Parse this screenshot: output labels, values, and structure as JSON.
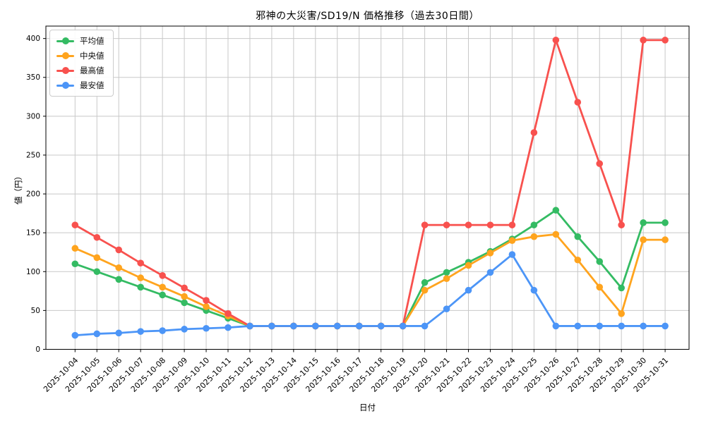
{
  "chart_data": {
    "type": "line",
    "title": "邪神の大災害/SD19/N 価格推移（過去30日間）",
    "xlabel": "日付",
    "ylabel": "値（円）",
    "ylim": [
      0,
      400
    ],
    "yticks": [
      0,
      50,
      100,
      150,
      200,
      250,
      300,
      350,
      400
    ],
    "grid": true,
    "legend_position": "upper left",
    "x": [
      "2025-10-04",
      "2025-10-05",
      "2025-10-06",
      "2025-10-07",
      "2025-10-08",
      "2025-10-09",
      "2025-10-10",
      "2025-10-11",
      "2025-10-12",
      "2025-10-13",
      "2025-10-14",
      "2025-10-15",
      "2025-10-16",
      "2025-10-17",
      "2025-10-18",
      "2025-10-19",
      "2025-10-20",
      "2025-10-21",
      "2025-10-22",
      "2025-10-23",
      "2025-10-24",
      "2025-10-25",
      "2025-10-26",
      "2025-10-27",
      "2025-10-28",
      "2025-10-29",
      "2025-10-30",
      "2025-10-31"
    ],
    "series": [
      {
        "name": "平均値",
        "color": "#34bb63",
        "values": [
          110,
          100,
          90,
          80,
          70,
          60,
          50,
          40,
          30,
          30,
          30,
          30,
          30,
          30,
          30,
          30,
          86,
          99,
          112,
          126,
          142,
          160,
          179,
          145,
          113,
          79,
          163,
          163
        ]
      },
      {
        "name": "中央値",
        "color": "#ffa41e",
        "values": [
          130,
          118,
          105,
          92,
          80,
          68,
          55,
          43,
          30,
          30,
          30,
          30,
          30,
          30,
          30,
          30,
          76,
          91,
          108,
          124,
          140,
          145,
          148,
          115,
          80,
          46,
          141,
          141
        ]
      },
      {
        "name": "最高値",
        "color": "#f8514e",
        "values": [
          160,
          144,
          128,
          111,
          95,
          79,
          63,
          46,
          30,
          30,
          30,
          30,
          30,
          30,
          30,
          30,
          160,
          160,
          160,
          160,
          160,
          279,
          398,
          318,
          239,
          160,
          398,
          398
        ]
      },
      {
        "name": "最安値",
        "color": "#4c95f7",
        "values": [
          18,
          20,
          21,
          23,
          24,
          26,
          27,
          28,
          30,
          30,
          30,
          30,
          30,
          30,
          30,
          30,
          30,
          52,
          76,
          99,
          122,
          76,
          30,
          30,
          30,
          30,
          30,
          30
        ]
      }
    ]
  }
}
